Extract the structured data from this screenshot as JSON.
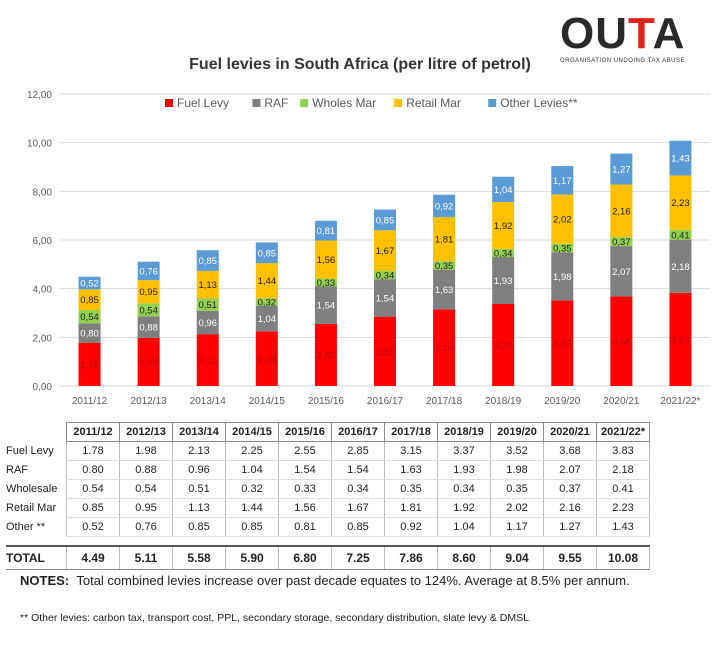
{
  "logo": {
    "word_dark": "OU",
    "word_red": "T",
    "word_dark2": "A",
    "subtitle": "ORGANISATION UNDOING TAX ABUSE"
  },
  "colors": {
    "fuel_levy": "#ff0000",
    "raf": "#7f7f7f",
    "wholesale": "#92d050",
    "retail": "#ffc000",
    "other": "#5b9bd5"
  },
  "chart_data": {
    "type": "bar",
    "stacked": true,
    "title": "Fuel levies in South Africa (per litre of petrol)",
    "xlabel": "",
    "ylabel": "",
    "ylim": [
      0,
      12
    ],
    "yticks": [
      "0,00",
      "2,00",
      "4,00",
      "6,00",
      "8,00",
      "10,00",
      "12,00"
    ],
    "grid": true,
    "legend_position": "top",
    "categories": [
      "2011/12",
      "2012/13",
      "2013/14",
      "2014/15",
      "2015/16",
      "2016/17",
      "2017/18",
      "2018/19",
      "2019/20",
      "2020/21",
      "2021/22*"
    ],
    "series": [
      {
        "name": "Fuel Levy",
        "color": "#ff0000",
        "values": [
          1.78,
          1.98,
          2.13,
          2.25,
          2.55,
          2.85,
          3.15,
          3.37,
          3.52,
          3.68,
          3.83
        ],
        "labels": [
          "1,78",
          "1,98",
          "2,13",
          "2,25",
          "2,55",
          "2,85",
          "3,15",
          "3,37",
          "3,52",
          "3,68",
          "3,83"
        ]
      },
      {
        "name": "RAF",
        "color": "#7f7f7f",
        "values": [
          0.8,
          0.88,
          0.96,
          1.04,
          1.54,
          1.54,
          1.63,
          1.93,
          1.98,
          2.07,
          2.18
        ],
        "labels": [
          "0,80",
          "0,88",
          "0,96",
          "1,04",
          "1,54",
          "1,54",
          "1,63",
          "1,93",
          "1,98",
          "2,07",
          "2,18"
        ]
      },
      {
        "name": "Wholes Mar",
        "color": "#92d050",
        "values": [
          0.54,
          0.54,
          0.51,
          0.32,
          0.33,
          0.34,
          0.35,
          0.34,
          0.35,
          0.37,
          0.41
        ],
        "labels": [
          "0,54",
          "0,54",
          "0,51",
          "0,32",
          "0,33",
          "0,34",
          "0,35",
          "0,34",
          "0,35",
          "0,37",
          "0,41"
        ]
      },
      {
        "name": "Retail Mar",
        "color": "#ffc000",
        "values": [
          0.85,
          0.95,
          1.13,
          1.44,
          1.56,
          1.67,
          1.81,
          1.92,
          2.02,
          2.16,
          2.23
        ],
        "labels": [
          "0,85",
          "0,95",
          "1,13",
          "1,44",
          "1,56",
          "1,67",
          "1,81",
          "1,92",
          "2,02",
          "2,16",
          "2,23"
        ]
      },
      {
        "name": "Other Levies**",
        "color": "#5b9bd5",
        "values": [
          0.52,
          0.76,
          0.85,
          0.85,
          0.81,
          0.85,
          0.92,
          1.04,
          1.17,
          1.27,
          1.43
        ],
        "labels": [
          "0,52",
          "0,76",
          "0,85",
          "0,85",
          "0,81",
          "0,85",
          "0,92",
          "1,04",
          "1,17",
          "1,27",
          "1,43"
        ]
      }
    ]
  },
  "table": {
    "headers": [
      "2011/12",
      "2012/13",
      "2013/14",
      "2014/15",
      "2015/16",
      "2016/17",
      "2017/18",
      "2018/19",
      "2019/20",
      "2020/21",
      "2021/22*"
    ],
    "rows": [
      {
        "label": "Fuel Levy",
        "values": [
          "1.78",
          "1.98",
          "2.13",
          "2.25",
          "2.55",
          "2.85",
          "3.15",
          "3.37",
          "3.52",
          "3.68",
          "3.83"
        ]
      },
      {
        "label": "RAF",
        "values": [
          "0.80",
          "0.88",
          "0.96",
          "1.04",
          "1.54",
          "1.54",
          "1.63",
          "1.93",
          "1.98",
          "2.07",
          "2.18"
        ]
      },
      {
        "label": "Wholesale",
        "values": [
          "0.54",
          "0.54",
          "0.51",
          "0.32",
          "0.33",
          "0.34",
          "0.35",
          "0.34",
          "0.35",
          "0.37",
          "0.41"
        ]
      },
      {
        "label": "Retail Mar",
        "values": [
          "0.85",
          "0.95",
          "1.13",
          "1.44",
          "1.56",
          "1.67",
          "1.81",
          "1.92",
          "2.02",
          "2.16",
          "2.23"
        ]
      },
      {
        "label": "Other **",
        "values": [
          "0.52",
          "0.76",
          "0.85",
          "0.85",
          "0.81",
          "0.85",
          "0.92",
          "1.04",
          "1.17",
          "1.27",
          "1.43"
        ]
      }
    ],
    "total": {
      "label": "TOTAL",
      "values": [
        "4.49",
        "5.11",
        "5.58",
        "5.90",
        "6.80",
        "7.25",
        "7.86",
        "8.60",
        "9.04",
        "9.55",
        "10.08"
      ]
    }
  },
  "notes": {
    "label": "NOTES:",
    "text": "Total combined levies increase over past decade equates to 124%.  Average at 8.5% per annum."
  },
  "footnote": "** Other  levies: carbon tax, transport cost, PPL, secondary storage,  secondary distribution, slate levy & DMSL"
}
